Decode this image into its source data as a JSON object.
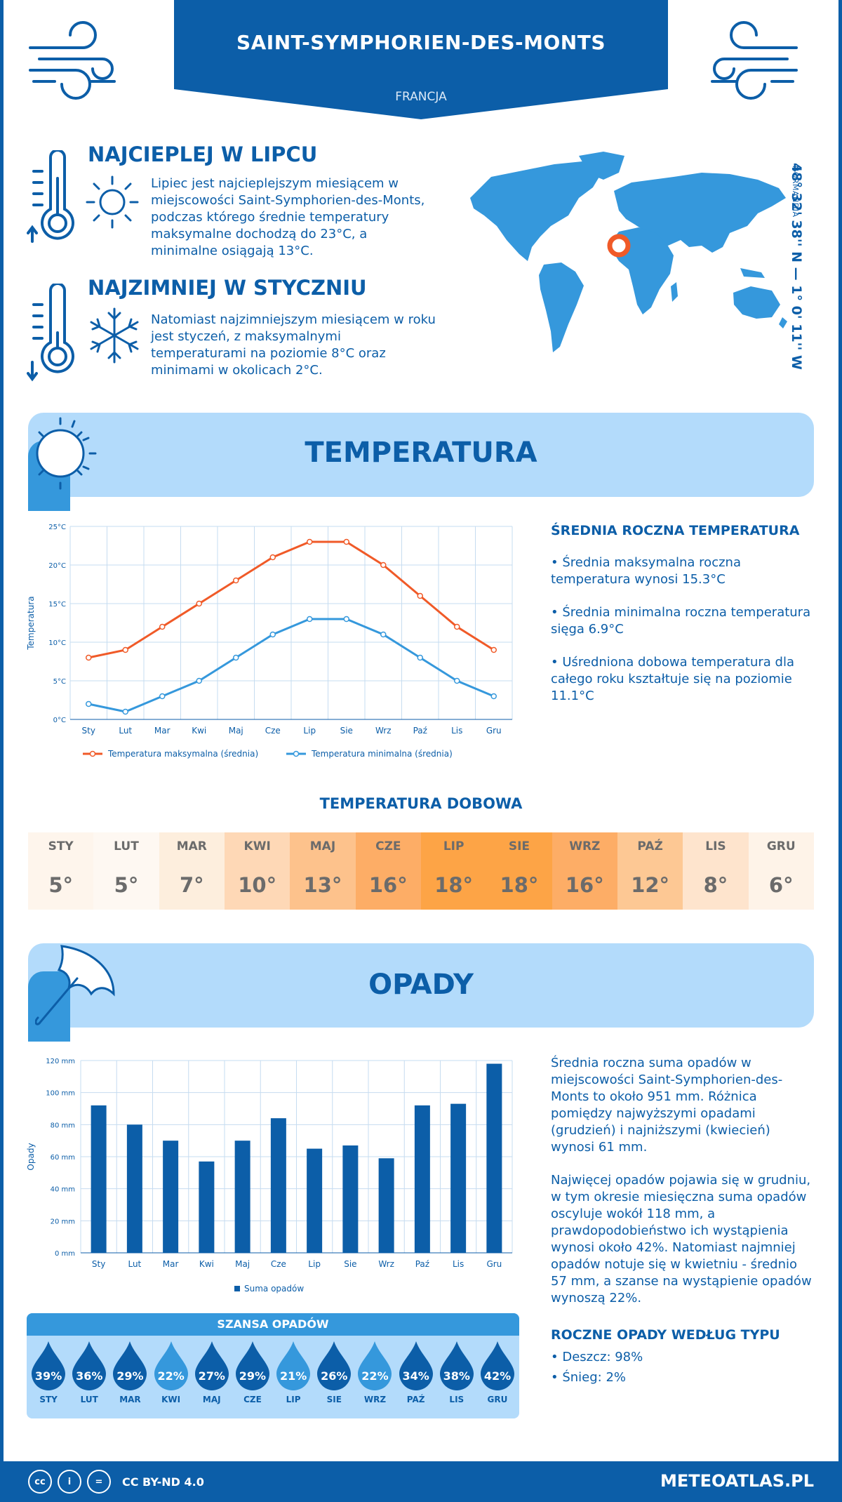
{
  "header": {
    "title": "SAINT-SYMPHORIEN-DES-MONTS",
    "country": "FRANCJA"
  },
  "location": {
    "coords": "48° 32' 38'' N — 1° 0' 11'' W",
    "region": "NORMANDIA"
  },
  "facts": {
    "warmest": {
      "title": "NAJCIEPLEJ W LIPCU",
      "text": "Lipiec jest najcieplejszym miesiącem w miejscowości Saint-Symphorien-des-Monts, podczas którego średnie temperatury maksymalne dochodzą do 23°C, a minimalne osiągają 13°C."
    },
    "coldest": {
      "title": "NAJZIMNIEJ W STYCZNIU",
      "text": "Natomiast najzimniejszym miesiącem w roku jest styczeń, z maksymalnymi temperaturami na poziomie 8°C oraz minimami w okolicach 2°C."
    }
  },
  "temperature": {
    "section_title": "TEMPERATURA",
    "side_title": "ŚREDNIA ROCZNA TEMPERATURA",
    "bullets": [
      "• Średnia maksymalna roczna temperatura wynosi 15.3°C",
      "• Średnia minimalna roczna temperatura sięga 6.9°C",
      "• Uśredniona dobowa temperatura dla całego roku kształtuje się na poziomie 11.1°C"
    ],
    "daily_title": "TEMPERATURA DOBOWA",
    "daily": [
      {
        "month": "STY",
        "value": "5°",
        "color": "#fef5ec"
      },
      {
        "month": "LUT",
        "value": "5°",
        "color": "#fef8f2"
      },
      {
        "month": "MAR",
        "value": "7°",
        "color": "#fdeedd"
      },
      {
        "month": "KWI",
        "value": "10°",
        "color": "#fed8b6"
      },
      {
        "month": "MAJ",
        "value": "13°",
        "color": "#fdc28c"
      },
      {
        "month": "CZE",
        "value": "16°",
        "color": "#fdad66"
      },
      {
        "month": "LIP",
        "value": "18°",
        "color": "#fda446"
      },
      {
        "month": "SIE",
        "value": "18°",
        "color": "#fda446"
      },
      {
        "month": "WRZ",
        "value": "16°",
        "color": "#fdad66"
      },
      {
        "month": "PAŹ",
        "value": "12°",
        "color": "#fdc894"
      },
      {
        "month": "LIS",
        "value": "8°",
        "color": "#fee4cd"
      },
      {
        "month": "GRU",
        "value": "6°",
        "color": "#fef3e8"
      }
    ]
  },
  "precipitation": {
    "section_title": "OPADY",
    "text1": "Średnia roczna suma opadów w miejscowości Saint-Symphorien-des-Monts to około 951 mm. Różnica pomiędzy najwyższymi opadami (grudzień) i najniższymi (kwiecień) wynosi 61 mm.",
    "text2": "Najwięcej opadów pojawia się w grudniu, w tym okresie miesięczna suma opadów oscyluje wokół 118 mm, a prawdopodobieństwo ich wystąpienia wynosi około 42%. Natomiast najmniej opadów notuje się w kwietniu - średnio 57 mm, a szanse na wystąpienie opadów wynoszą 22%.",
    "types_title": "ROCZNE OPADY WEDŁUG TYPU",
    "types": [
      "• Deszcz: 98%",
      "• Śnieg: 2%"
    ],
    "chance_title": "SZANSA OPADÓW",
    "chance": [
      {
        "month": "STY",
        "pct": "39%",
        "color": "#0c5ea8"
      },
      {
        "month": "LUT",
        "pct": "36%",
        "color": "#0c5ea8"
      },
      {
        "month": "MAR",
        "pct": "29%",
        "color": "#0c5ea8"
      },
      {
        "month": "KWI",
        "pct": "22%",
        "color": "#3598dc"
      },
      {
        "month": "MAJ",
        "pct": "27%",
        "color": "#0c5ea8"
      },
      {
        "month": "CZE",
        "pct": "29%",
        "color": "#0c5ea8"
      },
      {
        "month": "LIP",
        "pct": "21%",
        "color": "#3598dc"
      },
      {
        "month": "SIE",
        "pct": "26%",
        "color": "#0c5ea8"
      },
      {
        "month": "WRZ",
        "pct": "22%",
        "color": "#3598dc"
      },
      {
        "month": "PAŹ",
        "pct": "34%",
        "color": "#0c5ea8"
      },
      {
        "month": "LIS",
        "pct": "38%",
        "color": "#0c5ea8"
      },
      {
        "month": "GRU",
        "pct": "42%",
        "color": "#0c5ea8"
      }
    ]
  },
  "footer": {
    "license": "CC BY-ND 4.0",
    "site": "METEOATLAS.PL",
    "cc_icons": [
      "cc",
      "i",
      "="
    ]
  },
  "chart_data": [
    {
      "type": "line",
      "categories": [
        "Sty",
        "Lut",
        "Mar",
        "Kwi",
        "Maj",
        "Cze",
        "Lip",
        "Sie",
        "Wrz",
        "Paź",
        "Lis",
        "Gru"
      ],
      "series": [
        {
          "name": "Temperatura maksymalna (średnia)",
          "values": [
            8,
            9,
            12,
            15,
            18,
            21,
            23,
            23,
            20,
            16,
            12,
            9
          ],
          "color": "#f05a28"
        },
        {
          "name": "Temperatura minimalna (średnia)",
          "values": [
            2,
            1,
            3,
            5,
            8,
            11,
            13,
            13,
            11,
            8,
            5,
            3
          ],
          "color": "#3598dc"
        }
      ],
      "ylabel": "Temperatura",
      "yticks": [
        "0°C",
        "5°C",
        "10°C",
        "15°C",
        "20°C",
        "25°C"
      ],
      "ylim": [
        0,
        25
      ],
      "grid": true,
      "legend": "bottom"
    },
    {
      "type": "bar",
      "categories": [
        "Sty",
        "Lut",
        "Mar",
        "Kwi",
        "Maj",
        "Cze",
        "Lip",
        "Sie",
        "Wrz",
        "Paź",
        "Lis",
        "Gru"
      ],
      "series": [
        {
          "name": "Suma opadów",
          "values": [
            92,
            80,
            70,
            57,
            70,
            84,
            65,
            67,
            59,
            92,
            93,
            118
          ],
          "color": "#0c5ea8"
        }
      ],
      "ylabel": "Opady",
      "yticks": [
        "0 mm",
        "20 mm",
        "40 mm",
        "60 mm",
        "80 mm",
        "100 mm",
        "120 mm"
      ],
      "ylim": [
        0,
        120
      ],
      "grid": true,
      "legend": "bottom"
    }
  ]
}
